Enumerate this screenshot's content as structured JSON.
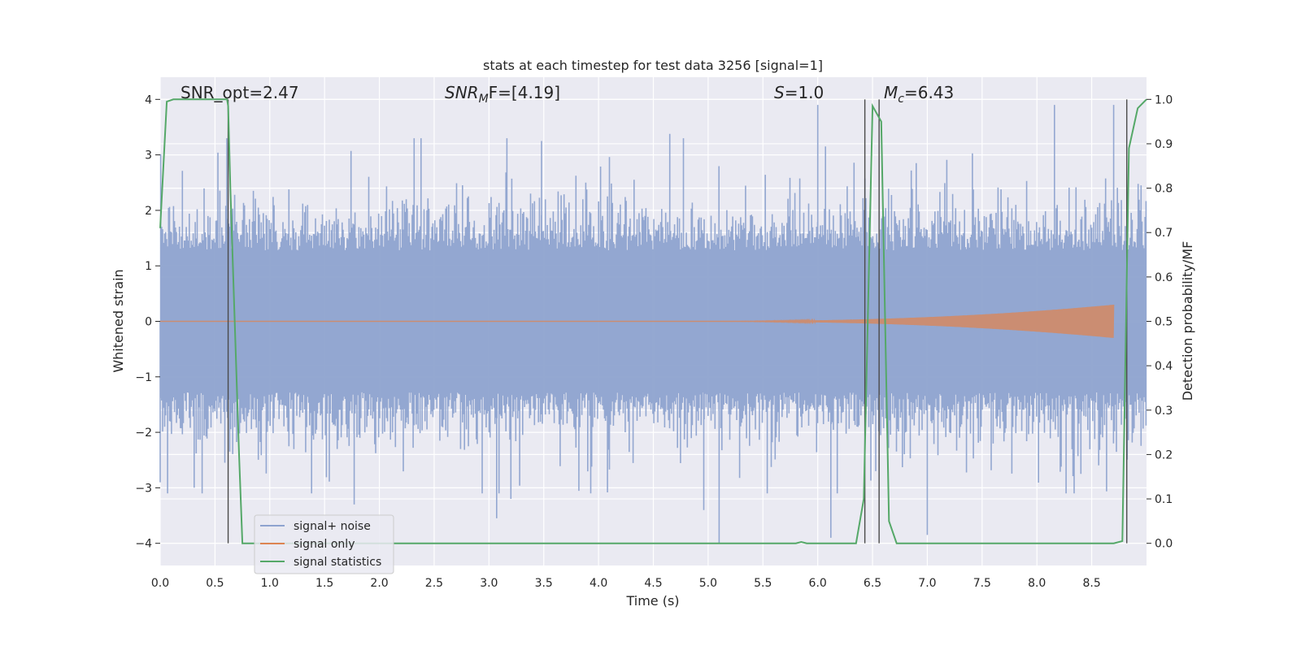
{
  "chart_data": {
    "type": "line",
    "title": "stats at each timestep for test data 3256 [signal=1]",
    "xlabel": "Time (s)",
    "ylabel_left": "Whitened strain",
    "ylabel_right": "Detection probability/MF",
    "xlim": [
      0.0,
      9.0
    ],
    "ylim_left": [
      -4.4,
      4.4
    ],
    "ylim_right": [
      -0.05,
      1.05
    ],
    "x_ticks": [
      "0.0",
      "0.5",
      "1.0",
      "1.5",
      "2.0",
      "2.5",
      "3.0",
      "3.5",
      "4.0",
      "4.5",
      "5.0",
      "5.5",
      "6.0",
      "6.5",
      "7.0",
      "7.5",
      "8.0",
      "8.5"
    ],
    "y_ticks_left": [
      "4",
      "3",
      "2",
      "1",
      "0",
      "−1",
      "−2",
      "−3",
      "−4"
    ],
    "y_ticks_right": [
      "1.0",
      "0.9",
      "0.8",
      "0.7",
      "0.6",
      "0.5",
      "0.4",
      "0.3",
      "0.2",
      "0.1",
      "0.0"
    ],
    "grid": true,
    "legend_position": "bottom-left",
    "annotations": {
      "snr_opt": "SNR_opt=2.47",
      "snr_mf_main": "SNR",
      "snr_mf_sub": "M",
      "snr_mf_tail": "F=[4.19]",
      "s_main": "S",
      "s_tail": "=1.0",
      "mc_main": "M",
      "mc_sub": "c",
      "mc_tail": "=6.43"
    },
    "series": [
      {
        "name": "signal+ noise",
        "color": "#8ea3cf",
        "kind": "noise",
        "band_sigma": 0.8,
        "notable_spikes": [
          {
            "x": 0.0,
            "y": -2.9
          },
          {
            "x": 1.77,
            "y": -3.3
          },
          {
            "x": 3.07,
            "y": -3.55
          },
          {
            "x": 3.2,
            "y": -3.2
          },
          {
            "x": 4.96,
            "y": -3.4
          },
          {
            "x": 5.1,
            "y": -4.0
          },
          {
            "x": 6.12,
            "y": -3.9
          },
          {
            "x": 7.0,
            "y": -3.85
          },
          {
            "x": 8.34,
            "y": -3.1
          },
          {
            "x": 6.0,
            "y": 3.9
          },
          {
            "x": 8.16,
            "y": 3.9
          },
          {
            "x": 8.7,
            "y": 3.9
          },
          {
            "x": 4.65,
            "y": 3.38
          },
          {
            "x": 3.48,
            "y": 3.25
          }
        ]
      },
      {
        "name": "signal only",
        "color": "#dd8452",
        "kind": "chirp",
        "x_start": 4.8,
        "x_end": 8.7,
        "amplitude_end": 0.3
      },
      {
        "name": "signal statistics",
        "color": "#55a868",
        "kind": "step",
        "x": [
          0.0,
          0.06,
          0.12,
          0.5,
          0.61,
          0.62,
          0.64,
          0.72,
          0.75,
          5.8,
          5.85,
          5.9,
          6.0,
          6.35,
          6.42,
          6.5,
          6.58,
          6.65,
          6.72,
          8.7,
          8.78,
          8.84,
          8.92,
          9.0
        ],
        "y": [
          0.71,
          0.995,
          1.0,
          1.0,
          1.0,
          0.985,
          0.8,
          0.2,
          0.0,
          0.0,
          0.003,
          0.0,
          0.0,
          0.0,
          0.1,
          0.985,
          0.95,
          0.05,
          0.0,
          0.0,
          0.005,
          0.89,
          0.98,
          1.0
        ]
      }
    ],
    "vertical_markers": [
      0.62,
      6.43,
      6.56,
      8.82
    ]
  }
}
